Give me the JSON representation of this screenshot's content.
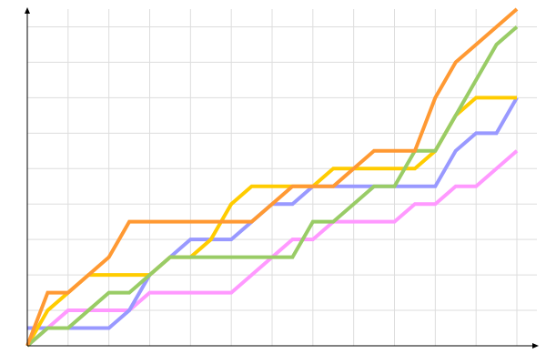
{
  "chart_data": {
    "type": "line",
    "title": "",
    "xlabel": "",
    "ylabel": "",
    "x": [
      0,
      1,
      2,
      3,
      4,
      5,
      6,
      7,
      8,
      9,
      10,
      11,
      12,
      13,
      14,
      15,
      16,
      17,
      18,
      19,
      20,
      21,
      22,
      23,
      24
    ],
    "xlim": [
      0,
      24
    ],
    "ylim": [
      0,
      19
    ],
    "grid": true,
    "legend": "none",
    "series": [
      {
        "color": "#ff99ff",
        "values": [
          0,
          1,
          2,
          2,
          2,
          2,
          3,
          3,
          3,
          3,
          3,
          4,
          5,
          6,
          6,
          7,
          7,
          7,
          7,
          8,
          8,
          9,
          9,
          10,
          11
        ]
      },
      {
        "color": "#9999ff",
        "values": [
          1,
          1,
          1,
          1,
          1,
          2,
          4,
          5,
          6,
          6,
          6,
          7,
          8,
          8,
          9,
          9,
          9,
          9,
          9,
          9,
          9,
          11,
          12,
          12,
          14
        ]
      },
      {
        "color": "#ffcc00",
        "values": [
          0,
          2,
          3,
          4,
          4,
          4,
          4,
          5,
          5,
          6,
          8,
          9,
          9,
          9,
          9,
          10,
          10,
          10,
          10,
          10,
          11,
          13,
          14,
          14,
          14
        ]
      },
      {
        "color": "#99cc66",
        "values": [
          0,
          1,
          1,
          2,
          3,
          3,
          4,
          5,
          5,
          5,
          5,
          5,
          5,
          5,
          7,
          7,
          8,
          9,
          9,
          11,
          11,
          13,
          15,
          17,
          18
        ]
      },
      {
        "color": "#ff9933",
        "values": [
          0,
          3,
          3,
          4,
          5,
          7,
          7,
          7,
          7,
          7,
          7,
          7,
          8,
          9,
          9,
          9,
          10,
          11,
          11,
          11,
          14,
          16,
          17,
          18,
          19
        ]
      }
    ]
  }
}
